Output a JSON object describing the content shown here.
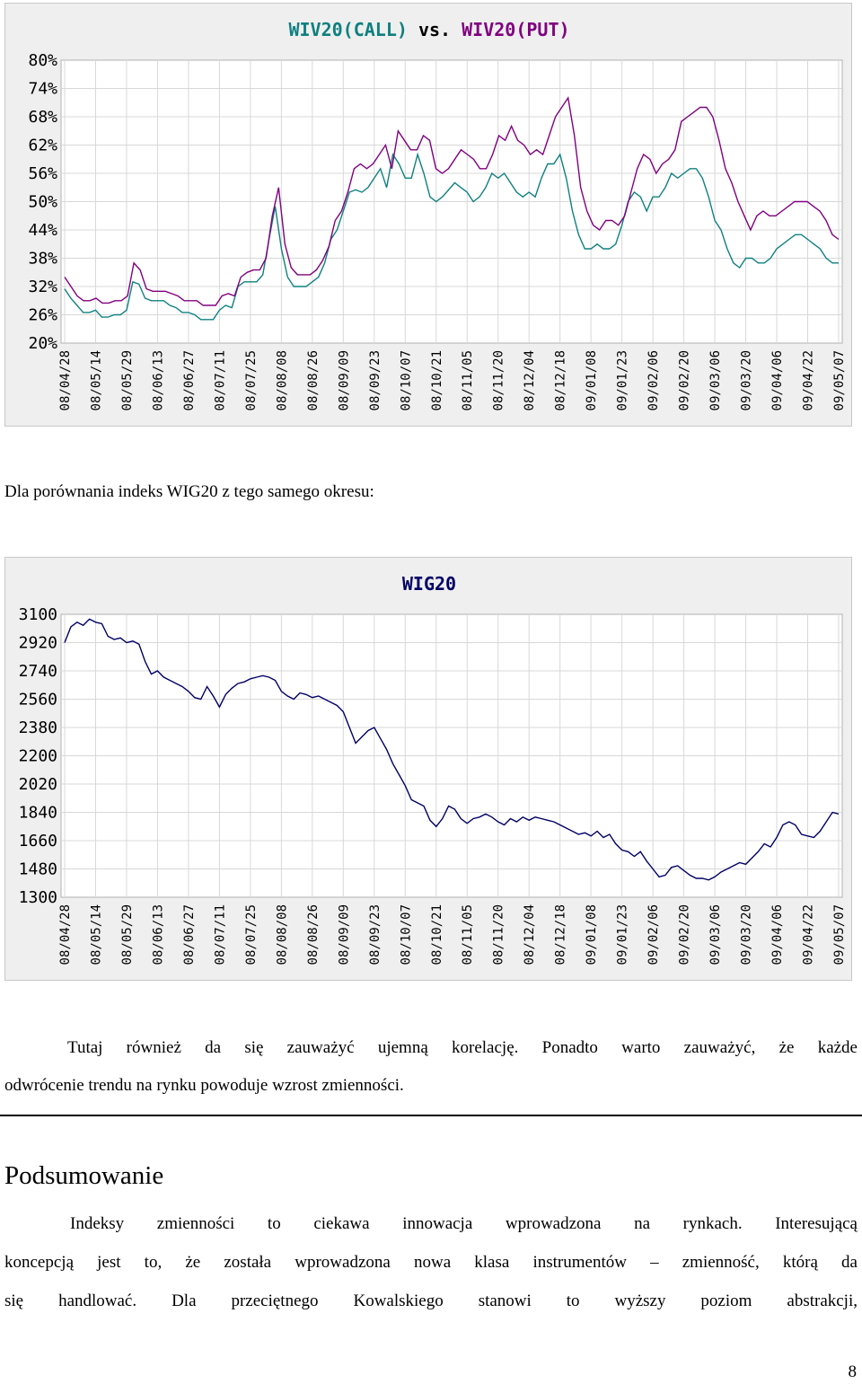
{
  "chart_data": [
    {
      "type": "line",
      "title_parts": [
        "WIV20(CALL)",
        "vs.",
        "WIV20(PUT)"
      ],
      "title_colors": [
        "#0f8080",
        "#000000",
        "#800080"
      ],
      "ylim": [
        20,
        80
      ],
      "y_ticks": [
        "80%",
        "74%",
        "68%",
        "62%",
        "56%",
        "50%",
        "44%",
        "38%",
        "32%",
        "26%",
        "20%"
      ],
      "x_ticks": [
        "08/04/28",
        "08/05/14",
        "08/05/29",
        "08/06/13",
        "08/06/27",
        "08/07/11",
        "08/07/25",
        "08/08/08",
        "08/08/26",
        "08/09/09",
        "08/09/23",
        "08/10/07",
        "08/10/21",
        "08/11/05",
        "08/11/20",
        "08/12/04",
        "08/12/18",
        "09/01/08",
        "09/01/23",
        "09/02/06",
        "09/02/20",
        "09/03/06",
        "09/03/20",
        "09/04/06",
        "09/04/22",
        "09/05/07"
      ],
      "grid": true,
      "series": [
        {
          "name": "WIV20(CALL)",
          "color": "#0f8080",
          "values": [
            31.5,
            29.5,
            28,
            26.5,
            26.5,
            27,
            25.5,
            25.5,
            26,
            26,
            27,
            33,
            32.5,
            29.5,
            29,
            29,
            29,
            28,
            27.5,
            26.5,
            26.5,
            26,
            25,
            25,
            25,
            27,
            28,
            27.5,
            32,
            33,
            33,
            33,
            34.5,
            42,
            49,
            40,
            34,
            32,
            32,
            32,
            33,
            34,
            37,
            42,
            44,
            48,
            52,
            52.5,
            52,
            53,
            55,
            57,
            53,
            60,
            58,
            55,
            55,
            60,
            56,
            51,
            50,
            51,
            52.5,
            54,
            53,
            52,
            50,
            51,
            53,
            56,
            55,
            56,
            54,
            52,
            51,
            52,
            51,
            55,
            58,
            58,
            60,
            55,
            48,
            43,
            40,
            40,
            41,
            40,
            40,
            41,
            45,
            50,
            52,
            51,
            48,
            51,
            51,
            53,
            56,
            55,
            56,
            57,
            57,
            55,
            51,
            46,
            44,
            40,
            37,
            36,
            38,
            38,
            37,
            37,
            38,
            40,
            41,
            42,
            43,
            43,
            42,
            41,
            40,
            38,
            37,
            37
          ]
        },
        {
          "name": "WIV20(PUT)",
          "color": "#800080",
          "values": [
            34,
            32,
            30,
            29,
            29,
            29.5,
            28.5,
            28.5,
            29,
            29,
            30,
            37,
            35.5,
            31.5,
            31,
            31,
            31,
            30.5,
            30,
            29,
            29,
            29,
            28,
            28,
            28,
            30,
            30.5,
            30,
            34,
            35,
            35.5,
            35.5,
            38,
            47,
            53,
            41,
            36,
            34.5,
            34.5,
            34.5,
            35.5,
            37.5,
            40.5,
            46,
            48,
            52,
            57,
            58,
            57,
            58,
            60,
            62,
            57,
            65,
            63,
            61,
            61,
            64,
            63,
            57,
            56,
            57,
            59,
            61,
            60,
            59,
            57,
            57,
            60,
            64,
            63,
            66,
            63,
            62,
            60,
            61,
            60,
            64,
            68,
            70,
            72,
            64,
            53,
            48,
            45,
            44,
            46,
            46,
            45,
            47,
            52,
            57,
            60,
            59,
            56,
            58,
            59,
            61,
            67,
            68,
            69,
            70,
            70,
            68,
            63,
            57,
            54,
            50,
            47,
            44,
            47,
            48,
            47,
            47,
            48,
            49,
            50,
            50,
            50,
            49,
            48,
            46,
            43,
            42
          ]
        }
      ]
    },
    {
      "type": "line",
      "title": "WIG20",
      "ylim": [
        1300,
        3100
      ],
      "y_ticks": [
        "3100",
        "2920",
        "2740",
        "2560",
        "2380",
        "2200",
        "2020",
        "1840",
        "1660",
        "1480",
        "1300"
      ],
      "x_ticks": [
        "08/04/28",
        "08/05/14",
        "08/05/29",
        "08/06/13",
        "08/06/27",
        "08/07/11",
        "08/07/25",
        "08/08/08",
        "08/08/26",
        "08/09/09",
        "08/09/23",
        "08/10/07",
        "08/10/21",
        "08/11/05",
        "08/11/20",
        "08/12/04",
        "08/12/18",
        "09/01/08",
        "09/01/23",
        "09/02/06",
        "09/02/20",
        "09/03/06",
        "09/03/20",
        "09/04/06",
        "09/04/22",
        "09/05/07"
      ],
      "grid": true,
      "series": [
        {
          "name": "WIG20",
          "color": "#000066",
          "values": [
            2920,
            3020,
            3050,
            3030,
            3070,
            3050,
            3040,
            2960,
            2940,
            2950,
            2920,
            2930,
            2910,
            2800,
            2720,
            2740,
            2700,
            2680,
            2660,
            2640,
            2610,
            2570,
            2560,
            2640,
            2580,
            2510,
            2590,
            2630,
            2660,
            2670,
            2690,
            2700,
            2710,
            2700,
            2680,
            2610,
            2580,
            2560,
            2600,
            2590,
            2570,
            2580,
            2560,
            2540,
            2520,
            2480,
            2380,
            2280,
            2320,
            2360,
            2380,
            2310,
            2240,
            2150,
            2080,
            2010,
            1920,
            1900,
            1880,
            1790,
            1750,
            1800,
            1880,
            1860,
            1800,
            1770,
            1800,
            1810,
            1830,
            1810,
            1780,
            1760,
            1800,
            1780,
            1810,
            1790,
            1810,
            1800,
            1790,
            1780,
            1760,
            1740,
            1720,
            1700,
            1710,
            1690,
            1720,
            1680,
            1700,
            1640,
            1600,
            1590,
            1560,
            1590,
            1530,
            1480,
            1430,
            1440,
            1490,
            1500,
            1470,
            1440,
            1420,
            1420,
            1410,
            1430,
            1460,
            1480,
            1500,
            1520,
            1510,
            1550,
            1590,
            1640,
            1620,
            1680,
            1760,
            1780,
            1760,
            1700,
            1690,
            1680,
            1720,
            1780,
            1840,
            1830
          ]
        }
      ]
    }
  ],
  "text": {
    "caption": "Dla porównania indeks WIG20 z tego samego okresu:",
    "para1_line1": "Tutaj również da się zauważyć ujemną korelację. Ponadto warto zauważyć, że każde",
    "para1_line2": "odwrócenie trendu na rynku powoduje wzrost zmienności.",
    "heading": "Podsumowanie",
    "para2_line1": "Indeksy zmienności to ciekawa innowacja wprowadzona na rynkach. Interesującą",
    "para2_line2": "koncepcją jest to, że została wprowadzona nowa klasa instrumentów – zmienność, którą da",
    "para2_line3": "się handlować. Dla przeciętnego Kowalskiego stanowi to wyższy poziom abstrakcji,",
    "page_number": "8"
  }
}
